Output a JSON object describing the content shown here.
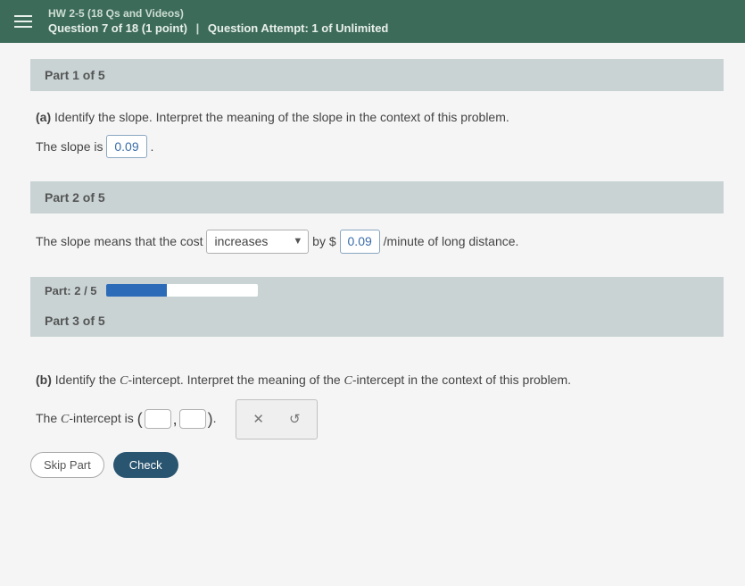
{
  "topbar": {
    "assignment": "HW 2-5 (18 Qs and Videos)",
    "question_line": "Question 7 of 18 (1 point)",
    "attempt": "Question Attempt: 1 of Unlimited"
  },
  "part1": {
    "header": "Part 1 of 5",
    "prompt_label": "(a)",
    "prompt_text": "Identify the slope. Interpret the meaning of the slope in the context of this problem.",
    "answer_prefix": "The slope is",
    "answer_value": "0.09",
    "answer_suffix": "."
  },
  "part2": {
    "header": "Part 2 of 5",
    "text_before": "The slope means that the cost",
    "select_value": "increases",
    "text_mid1": "by $",
    "value": "0.09",
    "text_after": "/minute of long distance."
  },
  "progress": {
    "label": "Part: 2 / 5",
    "percent": 40,
    "fill_color": "#2b6bb8",
    "track_color": "#ffffff"
  },
  "part3": {
    "header": "Part 3 of 5",
    "prompt_label": "(b)",
    "prompt_text_1": "Identify the ",
    "c_letter": "C",
    "prompt_text_2": "-intercept. Interpret the meaning of the ",
    "prompt_text_3": "-intercept in the context of this problem.",
    "answer_prefix_1": "The ",
    "answer_prefix_2": "-intercept is",
    "toolbar": {
      "close": "✕",
      "reset": "↺"
    }
  },
  "footer": {
    "skip": "Skip Part",
    "check": "Check"
  }
}
